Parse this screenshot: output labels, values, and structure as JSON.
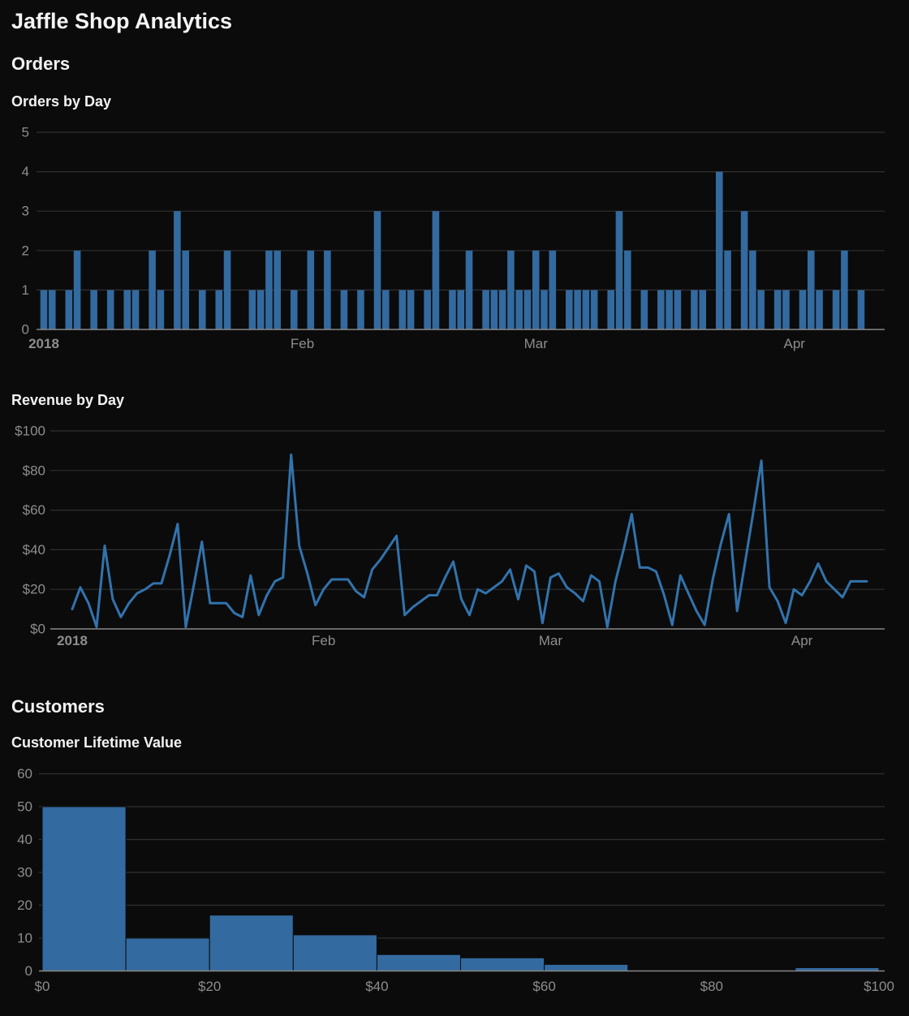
{
  "page": {
    "title": "Jaffle Shop Analytics"
  },
  "sections": {
    "orders": {
      "header": "Orders"
    },
    "customers": {
      "header": "Customers"
    }
  },
  "style": {
    "background": "#0b0b0b",
    "heading_color": "#f4f4f4",
    "tick_color": "#8d8d8d",
    "gridline_color": "#303030",
    "axis_line_color": "#878787",
    "series_blue": "#336a9f",
    "line_blue": "#3173ad"
  },
  "chart_data": [
    {
      "id": "orders_by_day",
      "type": "bar",
      "title": "Orders by Day",
      "x_start": "2018-01-01",
      "x_frequency": "daily",
      "ylim": [
        0,
        5
      ],
      "grid": true,
      "bar_color": "#336a9f",
      "y_ticks": [
        {
          "label": "0",
          "value": 0
        },
        {
          "label": "1",
          "value": 1
        },
        {
          "label": "2",
          "value": 2
        },
        {
          "label": "3",
          "value": 3
        },
        {
          "label": "4",
          "value": 4
        },
        {
          "label": "5",
          "value": 5
        }
      ],
      "x_ticks": [
        {
          "label": "2018",
          "day_index": 0,
          "bold": true
        },
        {
          "label": "Feb",
          "day_index": 31,
          "bold": false
        },
        {
          "label": "Mar",
          "day_index": 59,
          "bold": false
        },
        {
          "label": "Apr",
          "day_index": 90,
          "bold": false
        }
      ],
      "values": [
        1,
        1,
        0,
        1,
        2,
        0,
        1,
        0,
        1,
        0,
        1,
        1,
        0,
        2,
        1,
        0,
        3,
        2,
        0,
        1,
        0,
        1,
        2,
        0,
        0,
        1,
        1,
        2,
        2,
        0,
        1,
        0,
        2,
        0,
        2,
        0,
        1,
        0,
        1,
        0,
        3,
        1,
        0,
        1,
        1,
        0,
        1,
        3,
        0,
        1,
        1,
        2,
        0,
        1,
        1,
        1,
        2,
        1,
        1,
        2,
        1,
        2,
        0,
        1,
        1,
        1,
        1,
        0,
        1,
        3,
        2,
        0,
        1,
        0,
        1,
        1,
        1,
        0,
        1,
        1,
        0,
        4,
        2,
        0,
        3,
        2,
        1,
        0,
        1,
        1,
        0,
        1,
        2,
        1,
        0,
        1,
        2,
        0,
        1
      ]
    },
    {
      "id": "revenue_by_day",
      "type": "line",
      "title": "Revenue by Day",
      "x_start": "2018-01-01",
      "x_frequency": "daily",
      "ylim": [
        0,
        100
      ],
      "grid": true,
      "line_color": "#3173ad",
      "y_ticks": [
        {
          "label": "$0",
          "value": 0
        },
        {
          "label": "$20",
          "value": 20
        },
        {
          "label": "$40",
          "value": 40
        },
        {
          "label": "$60",
          "value": 60
        },
        {
          "label": "$80",
          "value": 80
        },
        {
          "label": "$100",
          "value": 100
        }
      ],
      "x_ticks": [
        {
          "label": "2018",
          "day_index": 0,
          "bold": true
        },
        {
          "label": "Feb",
          "day_index": 31,
          "bold": false
        },
        {
          "label": "Mar",
          "day_index": 59,
          "bold": false
        },
        {
          "label": "Apr",
          "day_index": 90,
          "bold": false
        }
      ],
      "values": [
        10,
        21,
        13,
        1,
        42,
        15,
        6,
        13,
        18,
        20,
        23,
        23,
        37,
        53,
        1,
        22,
        44,
        13,
        13,
        13,
        8,
        6,
        27,
        7,
        17,
        24,
        26,
        88,
        42,
        28,
        12,
        20,
        25,
        25,
        25,
        19,
        16,
        30,
        35,
        41,
        47,
        7,
        11,
        14,
        17,
        17,
        26,
        34,
        15,
        7,
        20,
        18,
        21,
        24,
        30,
        15,
        32,
        29,
        3,
        26,
        28,
        21,
        18,
        14,
        27,
        24,
        1,
        24,
        40,
        58,
        31,
        31,
        29,
        17,
        2,
        27,
        18,
        9,
        2,
        25,
        43,
        58,
        9,
        34,
        59,
        85,
        21,
        14,
        3,
        20,
        17,
        24,
        33,
        24,
        20,
        16,
        24,
        24,
        24
      ]
    },
    {
      "id": "customer_lifetime_value",
      "type": "histogram",
      "title": "Customer Lifetime Value",
      "ylim": [
        0,
        60
      ],
      "grid": true,
      "bar_color": "#336a9f",
      "bin_edges": [
        0,
        10,
        20,
        30,
        40,
        50,
        60,
        70,
        80,
        90,
        100
      ],
      "counts": [
        50,
        10,
        17,
        11,
        5,
        4,
        2,
        0,
        0,
        1
      ],
      "y_ticks": [
        {
          "label": "0",
          "value": 0
        },
        {
          "label": "10",
          "value": 10
        },
        {
          "label": "20",
          "value": 20
        },
        {
          "label": "30",
          "value": 30
        },
        {
          "label": "40",
          "value": 40
        },
        {
          "label": "50",
          "value": 50
        },
        {
          "label": "60",
          "value": 60
        }
      ],
      "x_ticks": [
        {
          "label": "$0",
          "value": 0
        },
        {
          "label": "$20",
          "value": 20
        },
        {
          "label": "$40",
          "value": 40
        },
        {
          "label": "$60",
          "value": 60
        },
        {
          "label": "$80",
          "value": 80
        },
        {
          "label": "$100",
          "value": 100
        }
      ]
    }
  ]
}
